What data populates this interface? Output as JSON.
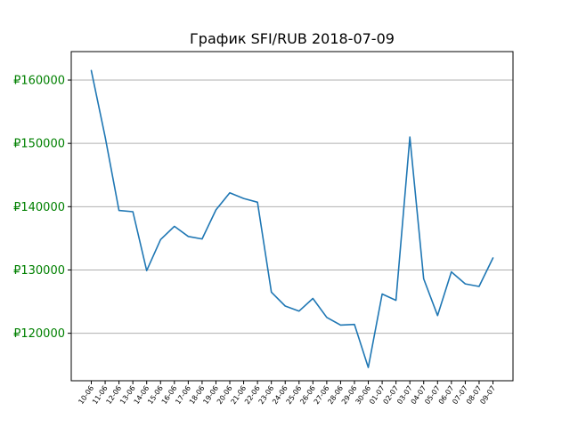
{
  "chart_data": {
    "type": "line",
    "title": "График SFI/RUB 2018-07-09",
    "xlabel": "",
    "ylabel": "",
    "ylim": [
      112500,
      164500
    ],
    "grid": "horizontal",
    "y_ticks": [
      120000,
      130000,
      140000,
      150000,
      160000
    ],
    "y_tick_labels": [
      "₽120000",
      "₽130000",
      "₽140000",
      "₽150000",
      "₽160000"
    ],
    "colors": {
      "line": "#1f77b4",
      "ytick_label": "#008000",
      "grid": "#b0b0b0"
    },
    "categories": [
      "10-06",
      "11-06",
      "12-06",
      "13-06",
      "14-06",
      "15-06",
      "16-06",
      "17-06",
      "18-06",
      "19-06",
      "20-06",
      "21-06",
      "22-06",
      "23-06",
      "24-06",
      "25-06",
      "26-06",
      "27-06",
      "28-06",
      "29-06",
      "30-06",
      "01-07",
      "02-07",
      "03-07",
      "04-07",
      "05-07",
      "06-07",
      "07-07",
      "08-07",
      "09-07"
    ],
    "series": [
      {
        "values": [
          161500,
          151000,
          139400,
          139200,
          129900,
          134800,
          136900,
          135300,
          134900,
          139500,
          142200,
          141300,
          140700,
          126500,
          124300,
          123500,
          125500,
          122500,
          121300,
          121400,
          114600,
          126200,
          125200,
          151000,
          128600,
          122800,
          129700,
          127800,
          127400,
          131900
        ]
      }
    ]
  }
}
